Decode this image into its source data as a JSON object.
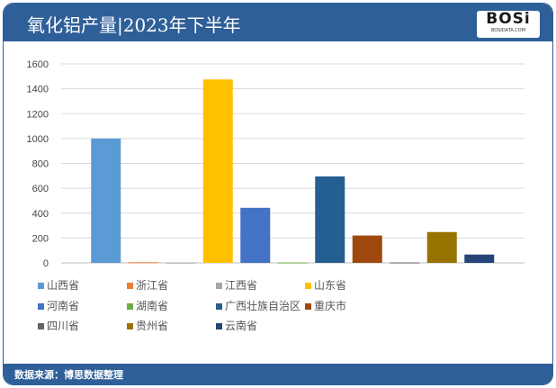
{
  "header": {
    "title": "氧化铝产量|2023年下半年",
    "logo_text": "BOSi",
    "logo_sub": "BOSIDATA.COM"
  },
  "footer": {
    "source": "数据来源：博思数据整理"
  },
  "chart_data": {
    "type": "bar",
    "title": "",
    "xlabel": "",
    "ylabel": "",
    "ylim": [
      0,
      1600
    ],
    "yticks": [
      "0",
      "200",
      "400",
      "600",
      "800",
      "1000",
      "1200",
      "1400",
      "1600"
    ],
    "grid": true,
    "legend_placement": "bottom",
    "series": [
      {
        "name": "山西省",
        "value": 1000,
        "color": "#5b9bd5"
      },
      {
        "name": "浙江省",
        "value": 5,
        "color": "#ed7d31"
      },
      {
        "name": "江西省",
        "value": 2,
        "color": "#a5a5a5"
      },
      {
        "name": "山东省",
        "value": 1475,
        "color": "#ffc000"
      },
      {
        "name": "河南省",
        "value": 443,
        "color": "#4472c4"
      },
      {
        "name": "湖南省",
        "value": 3,
        "color": "#70ad47"
      },
      {
        "name": "广西壮族自治区",
        "value": 695,
        "color": "#255e91"
      },
      {
        "name": "重庆市",
        "value": 220,
        "color": "#9e480e"
      },
      {
        "name": "四川省",
        "value": 3,
        "color": "#636363"
      },
      {
        "name": "贵州省",
        "value": 248,
        "color": "#997300"
      },
      {
        "name": "云南省",
        "value": 67,
        "color": "#264478"
      }
    ]
  }
}
